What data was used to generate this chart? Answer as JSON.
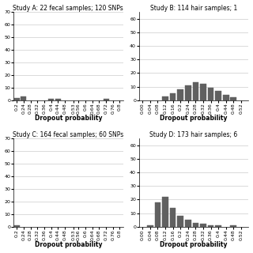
{
  "subplots": [
    {
      "title": "Study A: 22 fecal samples; 120 SNPs",
      "xlabel": "Dropout probability",
      "ylabel": "",
      "xlim": [
        0.18,
        0.82
      ],
      "ylim": [
        0,
        70
      ],
      "yticks": [
        0,
        10,
        20,
        30,
        40,
        50,
        60,
        70
      ],
      "xtick_labels": [
        "0.2",
        "0.24",
        "0.28",
        "0.32",
        "0.36",
        "0.4",
        "0.44",
        "0.48",
        "0.53",
        "0.56",
        "0.6",
        "0.64",
        "0.68",
        "0.72",
        "0.76",
        "0.8"
      ],
      "xtick_values": [
        0.2,
        0.24,
        0.28,
        0.32,
        0.36,
        0.4,
        0.44,
        0.48,
        0.53,
        0.56,
        0.6,
        0.64,
        0.68,
        0.72,
        0.76,
        0.8
      ],
      "bar_centers": [
        0.2,
        0.24,
        0.4,
        0.44,
        0.72
      ],
      "bar_heights": [
        2,
        3,
        1,
        1,
        1
      ],
      "bar_width": 0.032,
      "bar_color": "#606060"
    },
    {
      "title": "Study B: 114 hair samples; 1",
      "xlabel": "Dropout probability",
      "ylabel": "",
      "xlim": [
        -0.02,
        0.56
      ],
      "ylim": [
        0,
        65
      ],
      "yticks": [
        0,
        10,
        20,
        30,
        40,
        50,
        60
      ],
      "xtick_labels": [
        "0.00",
        "0.04",
        "0.08",
        "0.12",
        "0.16",
        "0.2",
        "0.24",
        "0.28",
        "0.32",
        "0.36",
        "0.4",
        "0.44",
        "0.48",
        "0.52"
      ],
      "xtick_values": [
        0.0,
        0.04,
        0.08,
        0.12,
        0.16,
        0.2,
        0.24,
        0.28,
        0.32,
        0.36,
        0.4,
        0.44,
        0.48,
        0.52
      ],
      "bar_centers": [
        0.12,
        0.16,
        0.2,
        0.24,
        0.28,
        0.32,
        0.36,
        0.4,
        0.44,
        0.48
      ],
      "bar_heights": [
        3,
        5,
        8,
        11,
        13,
        12,
        9,
        7,
        4,
        2
      ],
      "bar_width": 0.032,
      "bar_color": "#606060"
    },
    {
      "title": "Study C: 164 fecal samples; 60 SNPs",
      "xlabel": "Dropout probability",
      "ylabel": "",
      "xlim": [
        0.18,
        0.82
      ],
      "ylim": [
        0,
        70
      ],
      "yticks": [
        0,
        10,
        20,
        30,
        40,
        50,
        60,
        70
      ],
      "xtick_labels": [
        "0.2",
        "0.24",
        "0.28",
        "0.32",
        "0.36",
        "0.4",
        "0.44",
        "0.48",
        "0.53",
        "0.56",
        "0.6",
        "0.64",
        "0.68",
        "0.72",
        "0.76",
        "0.8"
      ],
      "xtick_values": [
        0.2,
        0.24,
        0.28,
        0.32,
        0.36,
        0.4,
        0.44,
        0.48,
        0.53,
        0.56,
        0.6,
        0.64,
        0.68,
        0.72,
        0.76,
        0.8
      ],
      "bar_centers": [
        0.2
      ],
      "bar_heights": [
        1
      ],
      "bar_width": 0.032,
      "bar_color": "#606060"
    },
    {
      "title": "Study D: 173 hair samples; 6",
      "xlabel": "Dropout probability",
      "ylabel": "",
      "xlim": [
        -0.02,
        0.56
      ],
      "ylim": [
        0,
        65
      ],
      "yticks": [
        0,
        10,
        20,
        30,
        40,
        50,
        60
      ],
      "xtick_labels": [
        "0.00",
        "0.04",
        "0.08",
        "0.12",
        "0.16",
        "0.2",
        "0.24",
        "0.28",
        "0.32",
        "0.36",
        "0.4",
        "0.44",
        "0.48",
        "0.52"
      ],
      "xtick_values": [
        0.0,
        0.04,
        0.08,
        0.12,
        0.16,
        0.2,
        0.24,
        0.28,
        0.32,
        0.36,
        0.4,
        0.44,
        0.48,
        0.52
      ],
      "bar_centers": [
        0.04,
        0.08,
        0.12,
        0.16,
        0.2,
        0.24,
        0.28,
        0.32,
        0.36,
        0.4,
        0.48
      ],
      "bar_heights": [
        1,
        18,
        22,
        14,
        8,
        5,
        3,
        2,
        1,
        1,
        1
      ],
      "bar_width": 0.032,
      "bar_color": "#606060"
    }
  ],
  "figure_bg": "#ffffff",
  "axes_bg": "#ffffff",
  "grid_color": "#cccccc",
  "title_fontsize": 5.5,
  "tick_fontsize": 4.5,
  "label_fontsize": 5.5
}
